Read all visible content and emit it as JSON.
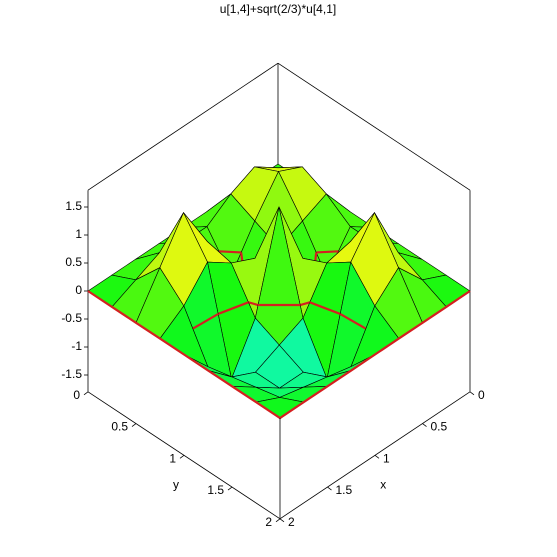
{
  "chart_data": {
    "type": "surface3d",
    "title": "u[1,4]+sqrt(2/3)*u[4,1]",
    "xlabel": "x",
    "ylabel": "y",
    "x": [
      0,
      0.25,
      0.5,
      0.75,
      1,
      1.25,
      1.5,
      1.75,
      2
    ],
    "y": [
      0,
      0.25,
      0.5,
      0.75,
      1,
      1.25,
      1.5,
      1.75,
      2
    ],
    "z": [
      [
        0,
        0,
        0,
        0,
        0,
        0,
        0,
        0,
        0
      ],
      [
        0,
        0.5,
        0.8,
        0.6,
        0.3,
        0.3,
        0.4,
        0.2,
        0
      ],
      [
        0,
        0.8,
        1.0,
        0.4,
        -0.3,
        0.6,
        1.4,
        0.7,
        0
      ],
      [
        0,
        0.6,
        0.4,
        0.2,
        0.3,
        0.5,
        0.8,
        0.3,
        0
      ],
      [
        0,
        0.3,
        -0.3,
        0.3,
        1.5,
        -0.2,
        -1.0,
        -0.5,
        0
      ],
      [
        0,
        0.3,
        0.6,
        0.5,
        -0.2,
        -0.4,
        -0.6,
        -0.4,
        0
      ],
      [
        0,
        0.4,
        1.4,
        0.8,
        -1.0,
        -0.6,
        -0.6,
        -0.3,
        0
      ],
      [
        0,
        0.2,
        0.7,
        0.3,
        -0.5,
        -0.4,
        -0.3,
        -0.2,
        0
      ],
      [
        0,
        0,
        0,
        0,
        0,
        0,
        0,
        0,
        0
      ]
    ],
    "xlim": [
      0,
      2
    ],
    "ylim": [
      0,
      2
    ],
    "zlim": [
      -1.8,
      1.8
    ],
    "xticks": [
      0,
      0.5,
      1,
      1.5,
      2
    ],
    "yticks": [
      0,
      0.5,
      1,
      1.5,
      2
    ],
    "zticks": [
      -1.5,
      -1,
      -0.5,
      0,
      0.5,
      1,
      1.5
    ],
    "colormap": "rainbow",
    "zero_contour_color": "#d42020"
  }
}
